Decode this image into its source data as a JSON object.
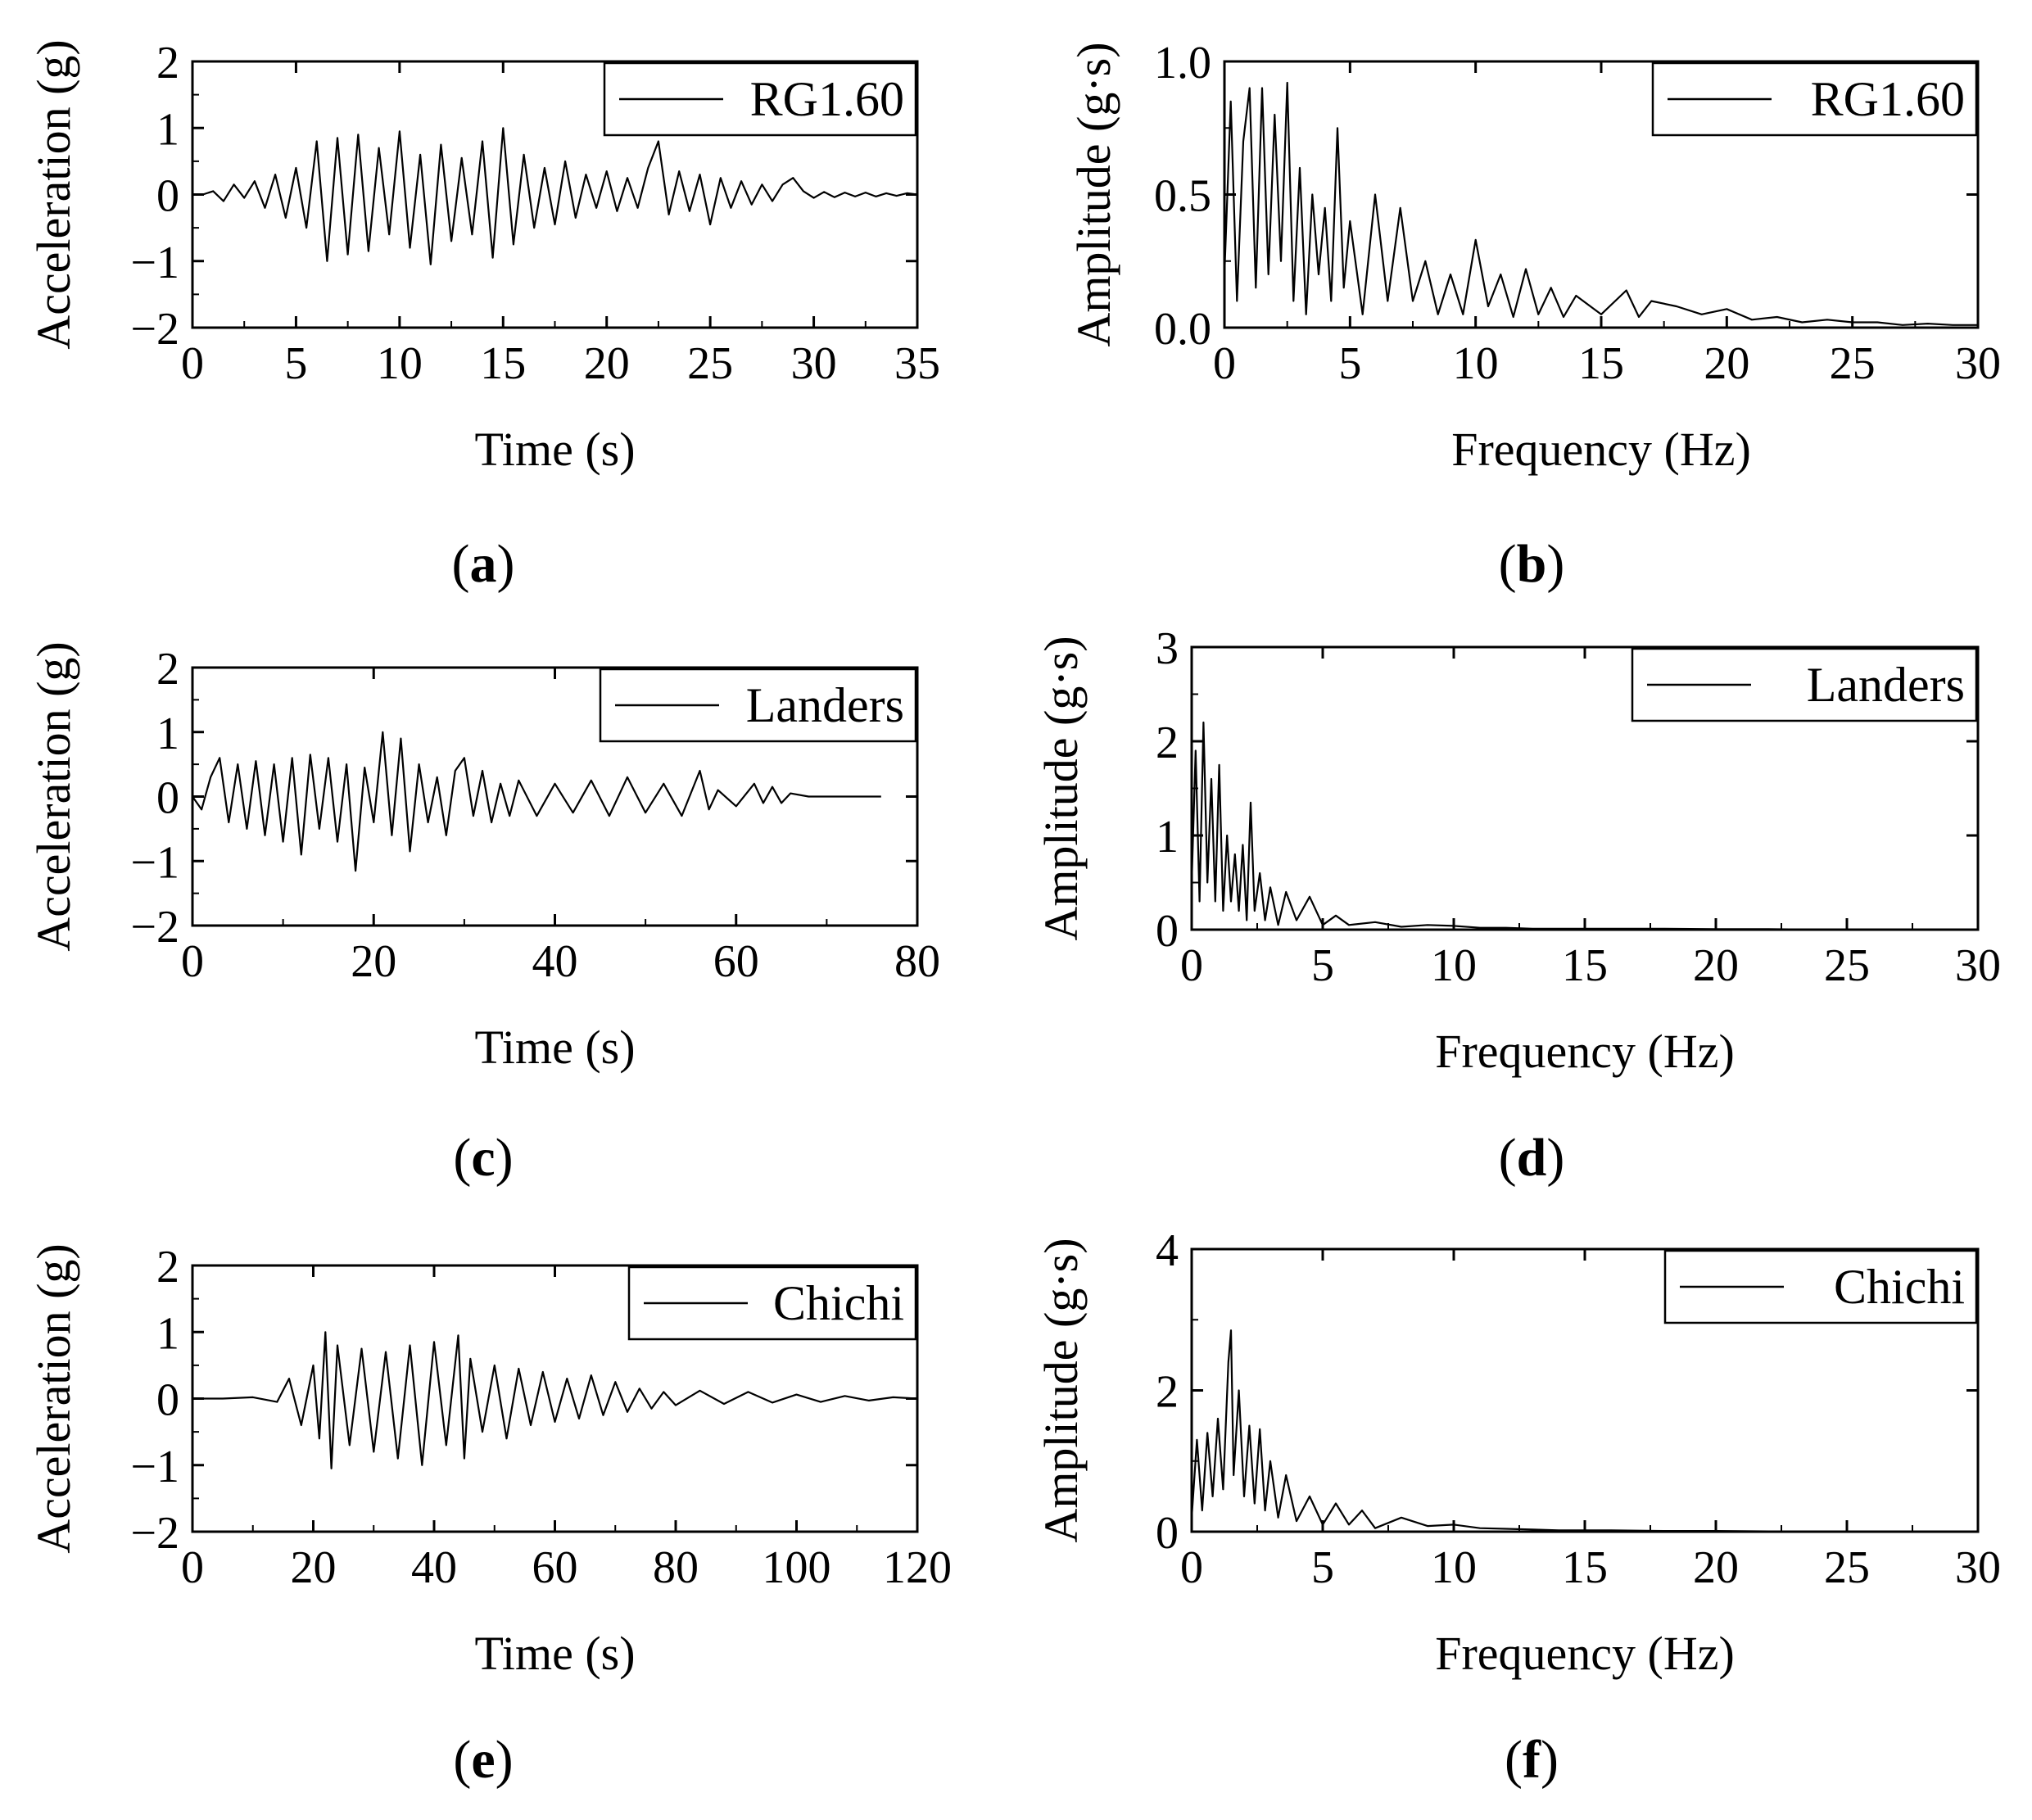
{
  "figure": {
    "panels": [
      {
        "caption_letter": "a",
        "caption_open": "(",
        "caption_close": ")"
      },
      {
        "caption_letter": "b",
        "caption_open": "(",
        "caption_close": ")"
      },
      {
        "caption_letter": "c",
        "caption_open": "(",
        "caption_close": ")"
      },
      {
        "caption_letter": "d",
        "caption_open": "(",
        "caption_close": ")"
      },
      {
        "caption_letter": "e",
        "caption_open": "(",
        "caption_close": ")"
      },
      {
        "caption_letter": "f",
        "caption_open": "(",
        "caption_close": ")"
      }
    ]
  },
  "chart_data": [
    {
      "type": "line",
      "panel": "a",
      "legend": "RG1.60",
      "legend_position": "top-right",
      "xlabel": "Time (s)",
      "ylabel": "Acceleration (g)",
      "xlim": [
        0,
        35
      ],
      "ylim": [
        -2,
        2
      ],
      "xticks": [
        0,
        5,
        10,
        15,
        20,
        25,
        30,
        35
      ],
      "xtick_labels": [
        "0",
        "5",
        "10",
        "15",
        "20",
        "25",
        "30",
        "35"
      ],
      "yticks": [
        -2,
        -1,
        0,
        1,
        2
      ],
      "ytick_labels": [
        "−2",
        "−1",
        "0",
        "1",
        "2"
      ],
      "series": [
        {
          "name": "RG1.60",
          "x": [
            0.5,
            1,
            1.5,
            2,
            2.5,
            3,
            3.5,
            4,
            4.5,
            5,
            5.5,
            6,
            6.5,
            7,
            7.5,
            8,
            8.5,
            9,
            9.5,
            10,
            10.5,
            11,
            11.5,
            12,
            12.5,
            13,
            13.5,
            14,
            14.5,
            15,
            15.5,
            16,
            16.5,
            17,
            17.5,
            18,
            18.5,
            19,
            19.5,
            20,
            20.5,
            21,
            21.5,
            22,
            22.5,
            23,
            23.5,
            24,
            24.5,
            25,
            25.5,
            26,
            26.5,
            27,
            27.5,
            28,
            28.5,
            29,
            29.5,
            30,
            30.5,
            31,
            31.5,
            32,
            32.5,
            33,
            33.5,
            34,
            34.5,
            35
          ],
          "y": [
            0,
            0.05,
            -0.1,
            0.15,
            -0.05,
            0.2,
            -0.2,
            0.3,
            -0.35,
            0.4,
            -0.5,
            0.8,
            -1.0,
            0.85,
            -0.9,
            0.9,
            -0.85,
            0.7,
            -0.6,
            0.95,
            -0.8,
            0.6,
            -1.05,
            0.75,
            -0.7,
            0.55,
            -0.6,
            0.8,
            -0.95,
            1.0,
            -0.75,
            0.6,
            -0.5,
            0.4,
            -0.45,
            0.5,
            -0.35,
            0.3,
            -0.2,
            0.35,
            -0.25,
            0.25,
            -0.2,
            0.4,
            0.8,
            -0.3,
            0.35,
            -0.25,
            0.3,
            -0.45,
            0.25,
            -0.2,
            0.2,
            -0.15,
            0.15,
            -0.1,
            0.15,
            0.25,
            0.05,
            -0.05,
            0.04,
            -0.04,
            0.03,
            -0.03,
            0.03,
            -0.03,
            0.02,
            -0.02,
            0.02,
            0
          ]
        }
      ]
    },
    {
      "type": "line",
      "panel": "b",
      "legend": "RG1.60",
      "legend_position": "top-right",
      "xlabel": "Frequency (Hz)",
      "ylabel": "Amplitude (g·s)",
      "xlim": [
        0,
        30
      ],
      "ylim": [
        0,
        1.0
      ],
      "xticks": [
        0,
        5,
        10,
        15,
        20,
        25,
        30
      ],
      "xtick_labels": [
        "0",
        "5",
        "10",
        "15",
        "20",
        "25",
        "30"
      ],
      "yticks": [
        0,
        0.5,
        1.0
      ],
      "ytick_labels": [
        "0.0",
        "0.5",
        "1.0"
      ],
      "series": [
        {
          "name": "RG1.60",
          "x": [
            0,
            0.25,
            0.5,
            0.75,
            1,
            1.25,
            1.5,
            1.75,
            2,
            2.25,
            2.5,
            2.75,
            3,
            3.25,
            3.5,
            3.75,
            4,
            4.25,
            4.5,
            4.75,
            5,
            5.5,
            6,
            6.5,
            7,
            7.5,
            8,
            8.5,
            9,
            9.5,
            10,
            10.5,
            11,
            11.5,
            12,
            12.5,
            13,
            13.5,
            14,
            15,
            16,
            16.5,
            17,
            18,
            19,
            20,
            21,
            22,
            23,
            24,
            25,
            26,
            27,
            28,
            29,
            30
          ],
          "y": [
            0.2,
            0.85,
            0.1,
            0.7,
            0.9,
            0.15,
            0.9,
            0.2,
            0.8,
            0.25,
            0.92,
            0.1,
            0.6,
            0.05,
            0.5,
            0.2,
            0.45,
            0.1,
            0.75,
            0.15,
            0.4,
            0.05,
            0.5,
            0.1,
            0.45,
            0.1,
            0.25,
            0.05,
            0.2,
            0.05,
            0.33,
            0.08,
            0.2,
            0.04,
            0.22,
            0.05,
            0.15,
            0.04,
            0.12,
            0.05,
            0.14,
            0.04,
            0.1,
            0.08,
            0.05,
            0.07,
            0.03,
            0.04,
            0.02,
            0.03,
            0.02,
            0.02,
            0.01,
            0.015,
            0.01,
            0.01
          ]
        }
      ]
    },
    {
      "type": "line",
      "panel": "c",
      "legend": "Landers",
      "legend_position": "top-right",
      "xlabel": "Time (s)",
      "ylabel": "Acceleration (g)",
      "xlim": [
        0,
        80
      ],
      "ylim": [
        -2,
        2
      ],
      "xticks": [
        0,
        20,
        40,
        60,
        80
      ],
      "xtick_labels": [
        "0",
        "20",
        "40",
        "60",
        "80"
      ],
      "yticks": [
        -2,
        -1,
        0,
        1,
        2
      ],
      "ytick_labels": [
        "−2",
        "−1",
        "0",
        "1",
        "2"
      ],
      "series": [
        {
          "name": "Landers",
          "x": [
            0,
            1,
            2,
            3,
            4,
            5,
            6,
            7,
            8,
            9,
            10,
            11,
            12,
            13,
            14,
            15,
            16,
            17,
            18,
            19,
            20,
            21,
            22,
            23,
            24,
            25,
            26,
            27,
            28,
            29,
            30,
            31,
            32,
            33,
            34,
            35,
            36,
            38,
            40,
            42,
            44,
            46,
            48,
            50,
            52,
            54,
            56,
            57,
            58,
            60,
            62,
            63,
            64,
            65,
            66,
            68,
            70,
            72,
            74,
            76
          ],
          "y": [
            0,
            -0.2,
            0.3,
            0.6,
            -0.4,
            0.5,
            -0.5,
            0.55,
            -0.6,
            0.5,
            -0.7,
            0.6,
            -0.9,
            0.65,
            -0.5,
            0.6,
            -0.7,
            0.5,
            -1.15,
            0.45,
            -0.4,
            1.0,
            -0.6,
            0.9,
            -0.85,
            0.5,
            -0.4,
            0.3,
            -0.6,
            0.4,
            0.6,
            -0.3,
            0.4,
            -0.4,
            0.2,
            -0.3,
            0.25,
            -0.3,
            0.2,
            -0.25,
            0.25,
            -0.3,
            0.3,
            -0.25,
            0.2,
            -0.3,
            0.4,
            -0.2,
            0.1,
            -0.15,
            0.2,
            -0.1,
            0.15,
            -0.1,
            0.05,
            0,
            0,
            0,
            0,
            0
          ]
        }
      ]
    },
    {
      "type": "line",
      "panel": "d",
      "legend": "Landers",
      "legend_position": "top-right",
      "xlabel": "Frequency (Hz)",
      "ylabel": "Amplitude (g·s)",
      "xlim": [
        0,
        30
      ],
      "ylim": [
        0,
        3
      ],
      "xticks": [
        0,
        5,
        10,
        15,
        20,
        25,
        30
      ],
      "xtick_labels": [
        "0",
        "5",
        "10",
        "15",
        "20",
        "25",
        "30"
      ],
      "yticks": [
        0,
        1,
        2,
        3
      ],
      "ytick_labels": [
        "0",
        "1",
        "2",
        "3"
      ],
      "series": [
        {
          "name": "Landers",
          "x": [
            0,
            0.15,
            0.3,
            0.45,
            0.6,
            0.75,
            0.9,
            1.05,
            1.2,
            1.35,
            1.5,
            1.65,
            1.8,
            1.95,
            2.1,
            2.25,
            2.4,
            2.6,
            2.8,
            3,
            3.3,
            3.6,
            4,
            4.5,
            5,
            5.5,
            6,
            7,
            8,
            9,
            10,
            11,
            12,
            13,
            14,
            16,
            18,
            20,
            22,
            24,
            26,
            28,
            30
          ],
          "y": [
            0.5,
            1.9,
            0.3,
            2.2,
            0.5,
            1.6,
            0.3,
            1.75,
            0.2,
            1.0,
            0.3,
            0.8,
            0.2,
            0.9,
            0.1,
            1.35,
            0.2,
            0.6,
            0.1,
            0.45,
            0.05,
            0.4,
            0.1,
            0.35,
            0.05,
            0.15,
            0.05,
            0.08,
            0.03,
            0.05,
            0.04,
            0.02,
            0.02,
            0.01,
            0.01,
            0.01,
            0.01,
            0.005,
            0.005,
            0,
            0,
            0,
            0
          ]
        }
      ]
    },
    {
      "type": "line",
      "panel": "e",
      "legend": "Chichi",
      "legend_position": "top-right",
      "xlabel": "Time (s)",
      "ylabel": "Acceleration (g)",
      "xlim": [
        0,
        120
      ],
      "ylim": [
        -2,
        2
      ],
      "xticks": [
        0,
        20,
        40,
        60,
        80,
        100,
        120
      ],
      "xtick_labels": [
        "0",
        "20",
        "40",
        "60",
        "80",
        "100",
        "120"
      ],
      "yticks": [
        -2,
        -1,
        0,
        1,
        2
      ],
      "ytick_labels": [
        "−2",
        "−1",
        "0",
        "1",
        "2"
      ],
      "series": [
        {
          "name": "Chichi",
          "x": [
            0,
            5,
            10,
            14,
            16,
            18,
            20,
            21,
            22,
            23,
            24,
            26,
            28,
            30,
            32,
            34,
            36,
            38,
            40,
            42,
            44,
            45,
            46,
            48,
            50,
            52,
            54,
            56,
            58,
            60,
            62,
            64,
            66,
            68,
            70,
            72,
            74,
            76,
            78,
            80,
            84,
            88,
            92,
            96,
            100,
            104,
            108,
            112,
            116,
            120
          ],
          "y": [
            0,
            0,
            0.02,
            -0.05,
            0.3,
            -0.4,
            0.5,
            -0.6,
            1.0,
            -1.05,
            0.8,
            -0.7,
            0.75,
            -0.8,
            0.7,
            -0.9,
            0.8,
            -1.0,
            0.85,
            -0.7,
            0.95,
            -0.9,
            0.6,
            -0.5,
            0.5,
            -0.6,
            0.45,
            -0.4,
            0.4,
            -0.35,
            0.3,
            -0.3,
            0.35,
            -0.25,
            0.25,
            -0.2,
            0.15,
            -0.15,
            0.1,
            -0.1,
            0.12,
            -0.08,
            0.1,
            -0.06,
            0.06,
            -0.05,
            0.04,
            -0.03,
            0.02,
            0
          ]
        }
      ]
    },
    {
      "type": "line",
      "panel": "f",
      "legend": "Chichi",
      "legend_position": "top-right",
      "xlabel": "Frequency (Hz)",
      "ylabel": "Amplitude (g·s)",
      "xlim": [
        0,
        30
      ],
      "ylim": [
        0,
        4
      ],
      "xticks": [
        0,
        5,
        10,
        15,
        20,
        25,
        30
      ],
      "xtick_labels": [
        "0",
        "5",
        "10",
        "15",
        "20",
        "25",
        "30"
      ],
      "yticks": [
        0,
        2,
        4
      ],
      "ytick_labels": [
        "0",
        "2",
        "4"
      ],
      "series": [
        {
          "name": "Chichi",
          "x": [
            0,
            0.2,
            0.4,
            0.6,
            0.8,
            1.0,
            1.2,
            1.4,
            1.5,
            1.6,
            1.8,
            2.0,
            2.2,
            2.4,
            2.6,
            2.8,
            3.0,
            3.3,
            3.6,
            4.0,
            4.5,
            5,
            5.5,
            6,
            6.5,
            7,
            8,
            9,
            10,
            11,
            12,
            13,
            14,
            16,
            18,
            20,
            22,
            24,
            26,
            28,
            30
          ],
          "y": [
            0.2,
            1.3,
            0.3,
            1.4,
            0.5,
            1.6,
            0.6,
            2.4,
            2.85,
            0.8,
            2.0,
            0.5,
            1.5,
            0.4,
            1.45,
            0.3,
            1.0,
            0.2,
            0.8,
            0.15,
            0.5,
            0.1,
            0.4,
            0.1,
            0.3,
            0.05,
            0.2,
            0.08,
            0.1,
            0.05,
            0.04,
            0.03,
            0.02,
            0.02,
            0.01,
            0.01,
            0.005,
            0.005,
            0,
            0,
            0
          ]
        }
      ]
    }
  ]
}
